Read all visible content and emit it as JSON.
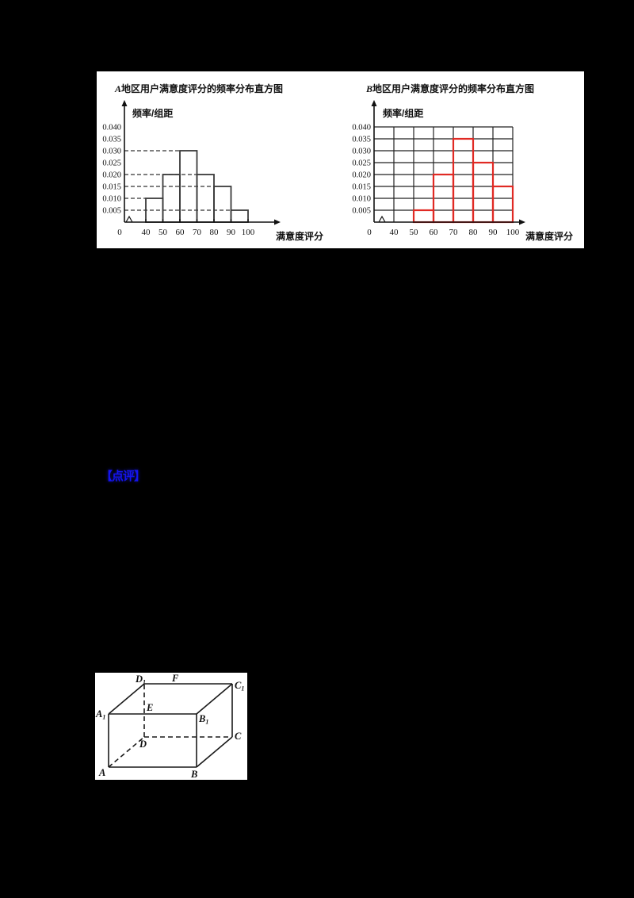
{
  "annotation": {
    "label": "【点评】",
    "color": "#1414f0"
  },
  "chart_data": [
    {
      "type": "bar",
      "id": "A",
      "title": "A地区用户满意度评分的频率分布直方图",
      "title_italic_prefix": "A",
      "title_rest": "地区用户满意度评分的频率分布直方图",
      "ylabel": "频率/组距",
      "xlabel": "满意度评分",
      "bin_edges": [
        40,
        50,
        60,
        70,
        80,
        90,
        100
      ],
      "values": [
        0.01,
        0.02,
        0.03,
        0.02,
        0.015,
        0.005
      ],
      "x_tick_labels": [
        "0",
        "40",
        "50",
        "60",
        "70",
        "80",
        "90",
        "100"
      ],
      "y_tick_labels": [
        "0.040",
        "0.035",
        "0.030",
        "0.025",
        "0.020",
        "0.015",
        "0.010",
        "0.005"
      ],
      "ylim": [
        0,
        0.04
      ],
      "grid": false,
      "dashed_guides": true,
      "axis_break": true,
      "bar_color": "#3a3a3a",
      "legend": "none"
    },
    {
      "type": "bar",
      "id": "B",
      "title": "B地区用户满意度评分的频率分布直方图",
      "title_italic_prefix": "B",
      "title_rest": "地区用户满意度评分的频率分布直方图",
      "ylabel": "频率/组距",
      "xlabel": "满意度评分",
      "bin_edges": [
        50,
        60,
        70,
        80,
        90,
        100
      ],
      "values": [
        0.005,
        0.02,
        0.035,
        0.025,
        0.015
      ],
      "x_tick_labels": [
        "0",
        "40",
        "50",
        "60",
        "70",
        "80",
        "90",
        "100"
      ],
      "y_tick_labels": [
        "0.040",
        "0.035",
        "0.030",
        "0.025",
        "0.020",
        "0.015",
        "0.010",
        "0.005"
      ],
      "ylim": [
        0,
        0.04
      ],
      "grid": true,
      "dashed_guides": false,
      "axis_break": true,
      "bar_color": "#e02a24",
      "legend": "none"
    }
  ],
  "cuboid": {
    "vertex_labels": [
      {
        "text": "A",
        "sub": ""
      },
      {
        "text": "B",
        "sub": ""
      },
      {
        "text": "C",
        "sub": ""
      },
      {
        "text": "D",
        "sub": ""
      },
      {
        "text": "A",
        "sub": "1"
      },
      {
        "text": "B",
        "sub": "1"
      },
      {
        "text": "C",
        "sub": "1"
      },
      {
        "text": "D",
        "sub": "1"
      },
      {
        "text": "E",
        "sub": ""
      },
      {
        "text": "F",
        "sub": ""
      }
    ]
  }
}
